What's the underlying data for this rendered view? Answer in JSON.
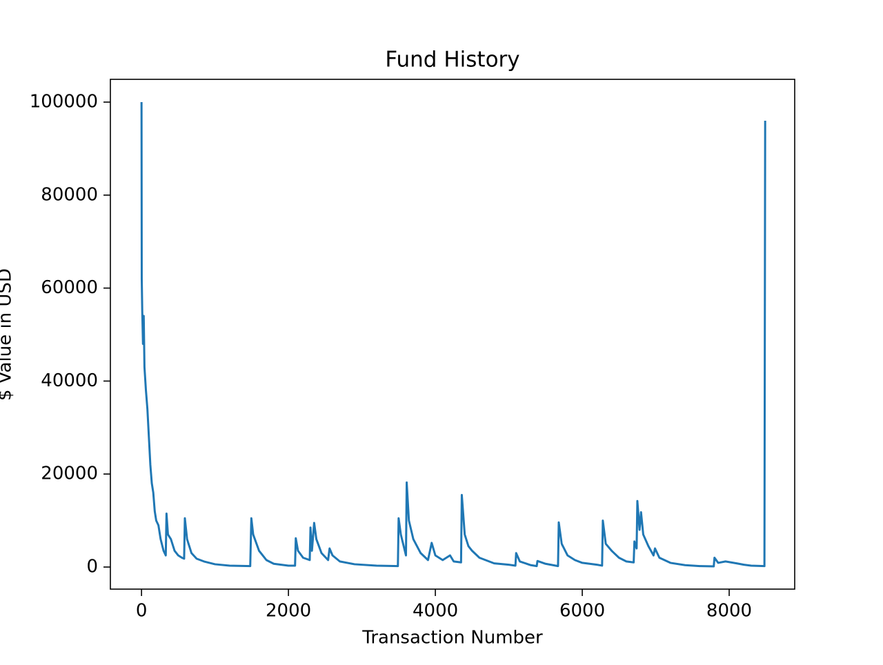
{
  "chart_data": {
    "type": "line",
    "title": "Fund History",
    "x_label": "Transaction Number",
    "y_label": "$ Value in USD",
    "color": "#1f77b4",
    "xlim": [
      -424,
      8892
    ],
    "ylim": [
      -4750,
      104900
    ],
    "xticks": [
      0,
      2000,
      4000,
      6000,
      8000
    ],
    "yticks": [
      0,
      20000,
      40000,
      60000,
      80000,
      100000
    ],
    "x": [
      0,
      3,
      10,
      20,
      30,
      40,
      60,
      80,
      100,
      120,
      140,
      160,
      180,
      200,
      230,
      260,
      300,
      330,
      340,
      360,
      400,
      450,
      500,
      550,
      580,
      590,
      620,
      680,
      750,
      850,
      1000,
      1200,
      1480,
      1495,
      1520,
      1600,
      1700,
      1800,
      2000,
      2090,
      2100,
      2130,
      2200,
      2290,
      2300,
      2320,
      2350,
      2380,
      2450,
      2540,
      2560,
      2600,
      2700,
      2900,
      3200,
      3490,
      3500,
      3530,
      3600,
      3610,
      3640,
      3700,
      3800,
      3900,
      3950,
      4000,
      4100,
      4200,
      4250,
      4350,
      4360,
      4400,
      4450,
      4500,
      4600,
      4800,
      5000,
      5090,
      5100,
      5150,
      5300,
      5380,
      5390,
      5500,
      5670,
      5680,
      5720,
      5800,
      5900,
      6000,
      6200,
      6270,
      6280,
      6320,
      6400,
      6500,
      6600,
      6700,
      6710,
      6740,
      6750,
      6780,
      6800,
      6830,
      6900,
      6970,
      6990,
      7050,
      7200,
      7400,
      7600,
      7790,
      7800,
      7850,
      7950,
      8100,
      8200,
      8300,
      8480,
      8490
    ],
    "values": [
      100000,
      62000,
      55000,
      48000,
      54000,
      43000,
      38000,
      34000,
      28000,
      22000,
      18000,
      16000,
      12000,
      10000,
      9000,
      6000,
      3500,
      2500,
      11500,
      7000,
      6000,
      3500,
      2500,
      2000,
      1800,
      10500,
      6000,
      3000,
      1800,
      1200,
      600,
      300,
      200,
      10500,
      7000,
      3500,
      1500,
      700,
      300,
      300,
      6200,
      3500,
      2000,
      1500,
      8500,
      3500,
      9500,
      6000,
      3000,
      1500,
      4000,
      2500,
      1200,
      600,
      300,
      200,
      10500,
      7000,
      2500,
      18200,
      10000,
      6000,
      3000,
      1500,
      5200,
      2500,
      1500,
      2500,
      1200,
      1000,
      15500,
      7000,
      4500,
      3500,
      2000,
      800,
      500,
      300,
      3000,
      1200,
      400,
      200,
      1300,
      700,
      200,
      9600,
      5000,
      2500,
      1500,
      900,
      500,
      300,
      10000,
      5000,
      3500,
      2000,
      1200,
      1000,
      5500,
      4000,
      14200,
      8000,
      11800,
      7000,
      4500,
      2500,
      4000,
      2000,
      900,
      400,
      200,
      150,
      2000,
      900,
      1200,
      800,
      500,
      300,
      200,
      96000
    ]
  }
}
